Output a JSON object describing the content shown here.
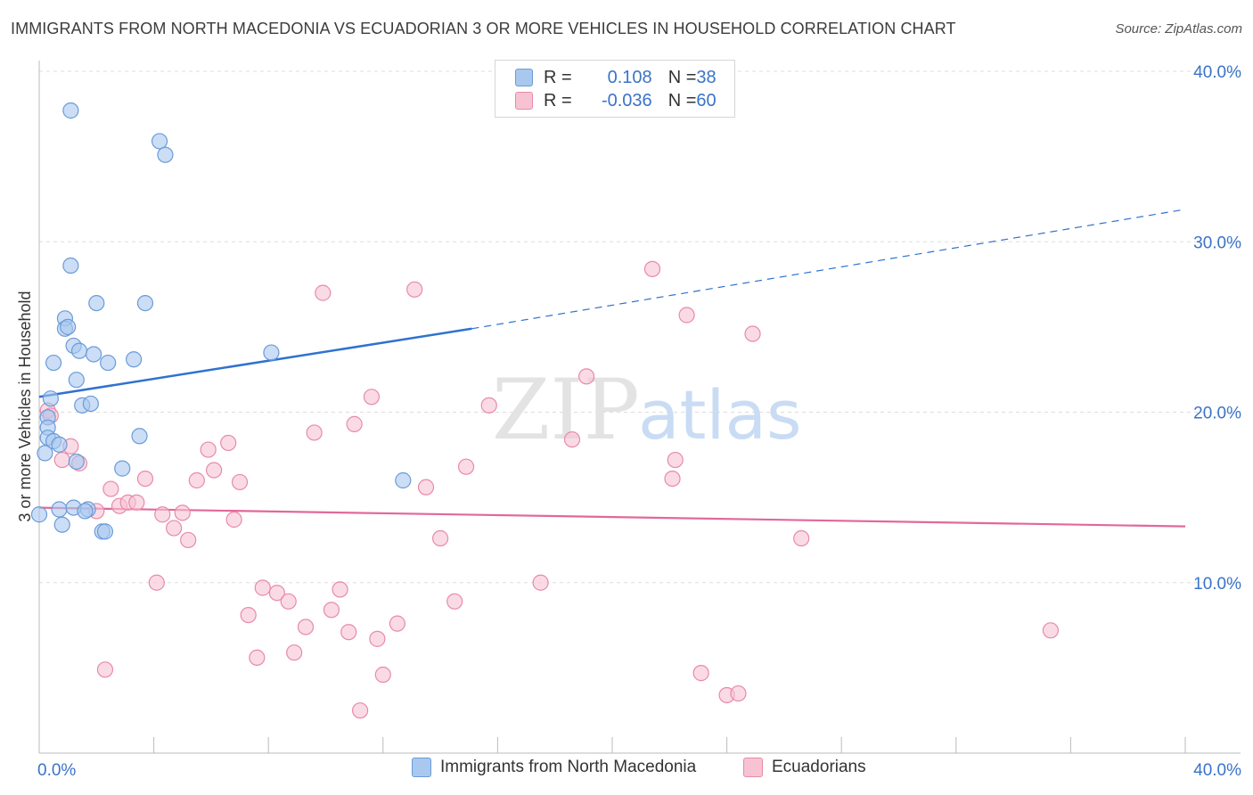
{
  "title": "IMMIGRANTS FROM NORTH MACEDONIA VS ECUADORIAN 3 OR MORE VEHICLES IN HOUSEHOLD CORRELATION CHART",
  "source": "Source: ZipAtlas.com",
  "watermark": {
    "zip": "ZIP",
    "atlas": "atlas"
  },
  "legend_top": {
    "rows": [
      {
        "r_label": "R = ",
        "r_value": "0.108",
        "n_label": "N = ",
        "n_value": "38"
      },
      {
        "r_label": "R = ",
        "r_value": "-0.036",
        "n_label": "N = ",
        "n_value": "60"
      }
    ]
  },
  "legend_bottom": {
    "items": [
      {
        "label": "Immigrants from North Macedonia"
      },
      {
        "label": "Ecuadorians"
      }
    ]
  },
  "colors": {
    "blue_fill": "#a9c8f0",
    "blue_stroke": "#6b9bd8",
    "blue_line": "#2f72d0",
    "pink_fill": "#f7c3d3",
    "pink_stroke": "#e88aa8",
    "pink_line": "#e0699a",
    "axis_text": "#3a73c9",
    "grid": "#dddddd"
  },
  "chart_data": {
    "type": "scatter",
    "title": "IMMIGRANTS FROM NORTH MACEDONIA VS ECUADORIAN 3 OR MORE VEHICLES IN HOUSEHOLD CORRELATION CHART",
    "xlabel": "",
    "ylabel": "3 or more Vehicles in Household",
    "xlim": [
      0,
      40
    ],
    "ylim": [
      0,
      40
    ],
    "x_ticks": [
      0,
      40
    ],
    "x_tick_labels": [
      "0.0%",
      "40.0%"
    ],
    "y_ticks": [
      10,
      20,
      30,
      40
    ],
    "y_tick_labels": [
      "10.0%",
      "20.0%",
      "30.0%",
      "40.0%"
    ],
    "grid": true,
    "legend_position": "top-center",
    "series": [
      {
        "name": "Immigrants from North Macedonia",
        "r": 0.108,
        "n": 38,
        "trend": {
          "x0": 0,
          "y0": 20.9,
          "x1": 15.1,
          "y1": 24.9,
          "dashed_to_x": 40,
          "dashed_to_y": 31.9
        },
        "points": [
          [
            1.1,
            37.7
          ],
          [
            4.2,
            35.9
          ],
          [
            4.4,
            35.1
          ],
          [
            1.1,
            28.6
          ],
          [
            2.0,
            26.4
          ],
          [
            3.7,
            26.4
          ],
          [
            0.9,
            25.5
          ],
          [
            0.9,
            24.9
          ],
          [
            1.0,
            25.0
          ],
          [
            1.2,
            23.9
          ],
          [
            1.4,
            23.6
          ],
          [
            1.9,
            23.4
          ],
          [
            2.4,
            22.9
          ],
          [
            3.3,
            23.1
          ],
          [
            0.5,
            22.9
          ],
          [
            8.1,
            23.5
          ],
          [
            1.3,
            21.9
          ],
          [
            0.4,
            20.8
          ],
          [
            1.5,
            20.4
          ],
          [
            1.8,
            20.5
          ],
          [
            0.3,
            19.7
          ],
          [
            0.3,
            19.1
          ],
          [
            0.3,
            18.5
          ],
          [
            0.5,
            18.3
          ],
          [
            0.7,
            18.1
          ],
          [
            0.2,
            17.6
          ],
          [
            3.5,
            18.6
          ],
          [
            1.3,
            17.1
          ],
          [
            2.9,
            16.7
          ],
          [
            12.7,
            16.0
          ],
          [
            0.7,
            14.3
          ],
          [
            1.2,
            14.4
          ],
          [
            1.7,
            14.3
          ],
          [
            0.0,
            14.0
          ],
          [
            0.8,
            13.4
          ],
          [
            2.2,
            13.0
          ],
          [
            2.3,
            13.0
          ],
          [
            1.6,
            14.2
          ]
        ]
      },
      {
        "name": "Ecuadorians",
        "r": -0.036,
        "n": 60,
        "trend": {
          "x0": 0,
          "y0": 14.4,
          "x1": 40,
          "y1": 13.3
        },
        "points": [
          [
            0.3,
            20.1
          ],
          [
            0.4,
            19.8
          ],
          [
            0.8,
            17.2
          ],
          [
            1.1,
            18.0
          ],
          [
            1.4,
            17.0
          ],
          [
            2.5,
            15.5
          ],
          [
            2.0,
            14.2
          ],
          [
            2.8,
            14.5
          ],
          [
            3.1,
            14.7
          ],
          [
            3.4,
            14.7
          ],
          [
            3.7,
            16.1
          ],
          [
            4.3,
            14.0
          ],
          [
            5.0,
            14.1
          ],
          [
            4.7,
            13.2
          ],
          [
            5.2,
            12.5
          ],
          [
            5.5,
            16.0
          ],
          [
            5.9,
            17.8
          ],
          [
            6.1,
            16.6
          ],
          [
            6.6,
            18.2
          ],
          [
            6.8,
            13.7
          ],
          [
            7.0,
            15.9
          ],
          [
            4.1,
            10.0
          ],
          [
            7.3,
            8.1
          ],
          [
            7.6,
            5.6
          ],
          [
            7.8,
            9.7
          ],
          [
            8.3,
            9.4
          ],
          [
            8.7,
            8.9
          ],
          [
            8.9,
            5.9
          ],
          [
            9.3,
            7.4
          ],
          [
            9.6,
            18.8
          ],
          [
            9.9,
            27.0
          ],
          [
            10.2,
            8.4
          ],
          [
            10.5,
            9.6
          ],
          [
            10.8,
            7.1
          ],
          [
            11.0,
            19.3
          ],
          [
            11.6,
            20.9
          ],
          [
            11.8,
            6.7
          ],
          [
            12.0,
            4.6
          ],
          [
            12.5,
            7.6
          ],
          [
            13.1,
            27.2
          ],
          [
            13.5,
            15.6
          ],
          [
            14.0,
            12.6
          ],
          [
            14.5,
            8.9
          ],
          [
            14.9,
            16.8
          ],
          [
            15.7,
            20.4
          ],
          [
            17.5,
            10.0
          ],
          [
            18.6,
            18.4
          ],
          [
            19.1,
            22.1
          ],
          [
            21.4,
            28.4
          ],
          [
            22.2,
            17.2
          ],
          [
            22.1,
            16.1
          ],
          [
            22.6,
            25.7
          ],
          [
            23.1,
            4.7
          ],
          [
            24.0,
            3.4
          ],
          [
            24.4,
            3.5
          ],
          [
            24.9,
            24.6
          ],
          [
            26.6,
            12.6
          ],
          [
            35.3,
            7.2
          ],
          [
            2.3,
            4.9
          ],
          [
            11.2,
            2.5
          ]
        ]
      }
    ]
  }
}
